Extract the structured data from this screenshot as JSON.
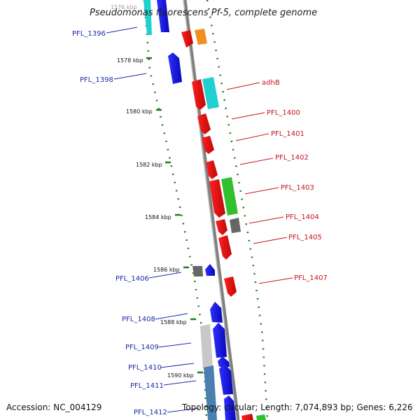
{
  "title": "Pseudomonas fluorescens Pf-5, complete genome",
  "accession": "Accession: NC_004129",
  "topology": "Topology: circular; Length: 7,074,893 bp; Genes: 6,226",
  "colors": {
    "backbone": "#7f7f7f",
    "tick": "#1f7a1f",
    "blue_gene": "#1010e0",
    "red_gene": "#e01010",
    "cyan_gene": "#20d0d0",
    "green_gene": "#30c030",
    "orange_gene": "#f09020",
    "gray_gene": "#666666",
    "light_gray_gene": "#c8c8c8",
    "steel_blue_gene": "#4a7fb0",
    "blue_label": "#1d2ba8",
    "red_label": "#c4161c"
  },
  "kbp_labels": [
    "1576 kbp",
    "1578 kbp",
    "1580 kbp",
    "1582 kbp",
    "1584 kbp",
    "1586 kbp",
    "1588 kbp",
    "1590 kbp"
  ],
  "left_labels": [
    "PFL_1396",
    "PFL_1398",
    "PFL_1406",
    "PFL_1408",
    "PFL_1409",
    "PFL_1410",
    "PFL_1411",
    "PFL_1412"
  ],
  "right_labels": [
    "adhB",
    "PFL_1400",
    "PFL_1401",
    "PFL_1402",
    "PFL_1403",
    "PFL_1404",
    "PFL_1405",
    "PFL_1407"
  ]
}
